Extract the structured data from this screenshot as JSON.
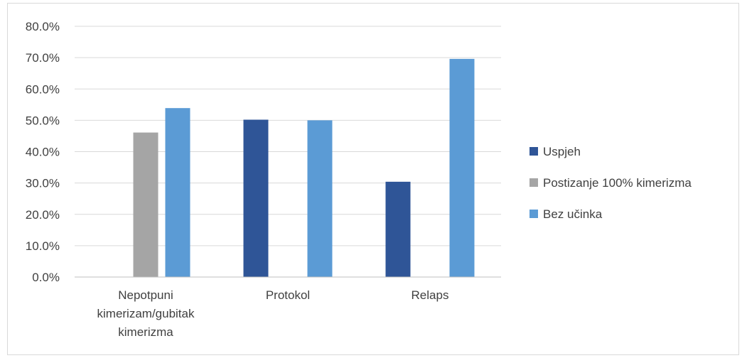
{
  "chart_data": {
    "type": "bar",
    "title": "",
    "xlabel": "",
    "ylabel": "",
    "categories": [
      [
        "Nepotpuni",
        "kimerizam/gubitak",
        "kimerizma"
      ],
      [
        "Protokol"
      ],
      [
        "Relaps"
      ]
    ],
    "series": [
      {
        "name": "Uspjeh",
        "color": "#2f5597",
        "values": [
          null,
          50.2,
          30.4
        ]
      },
      {
        "name": "Postizanje 100% kimerizma",
        "color": "#a5a5a5",
        "values": [
          46.1,
          null,
          null
        ]
      },
      {
        "name": "Bez učinka",
        "color": "#5b9bd5",
        "values": [
          53.9,
          50.0,
          69.6
        ]
      }
    ],
    "ylim": [
      0,
      80
    ],
    "ytick_step": 10,
    "ytick_labels": [
      "0.0%",
      "10.0%",
      "20.0%",
      "30.0%",
      "40.0%",
      "50.0%",
      "60.0%",
      "70.0%",
      "80.0%"
    ],
    "grid": true,
    "legend_position": "right"
  }
}
